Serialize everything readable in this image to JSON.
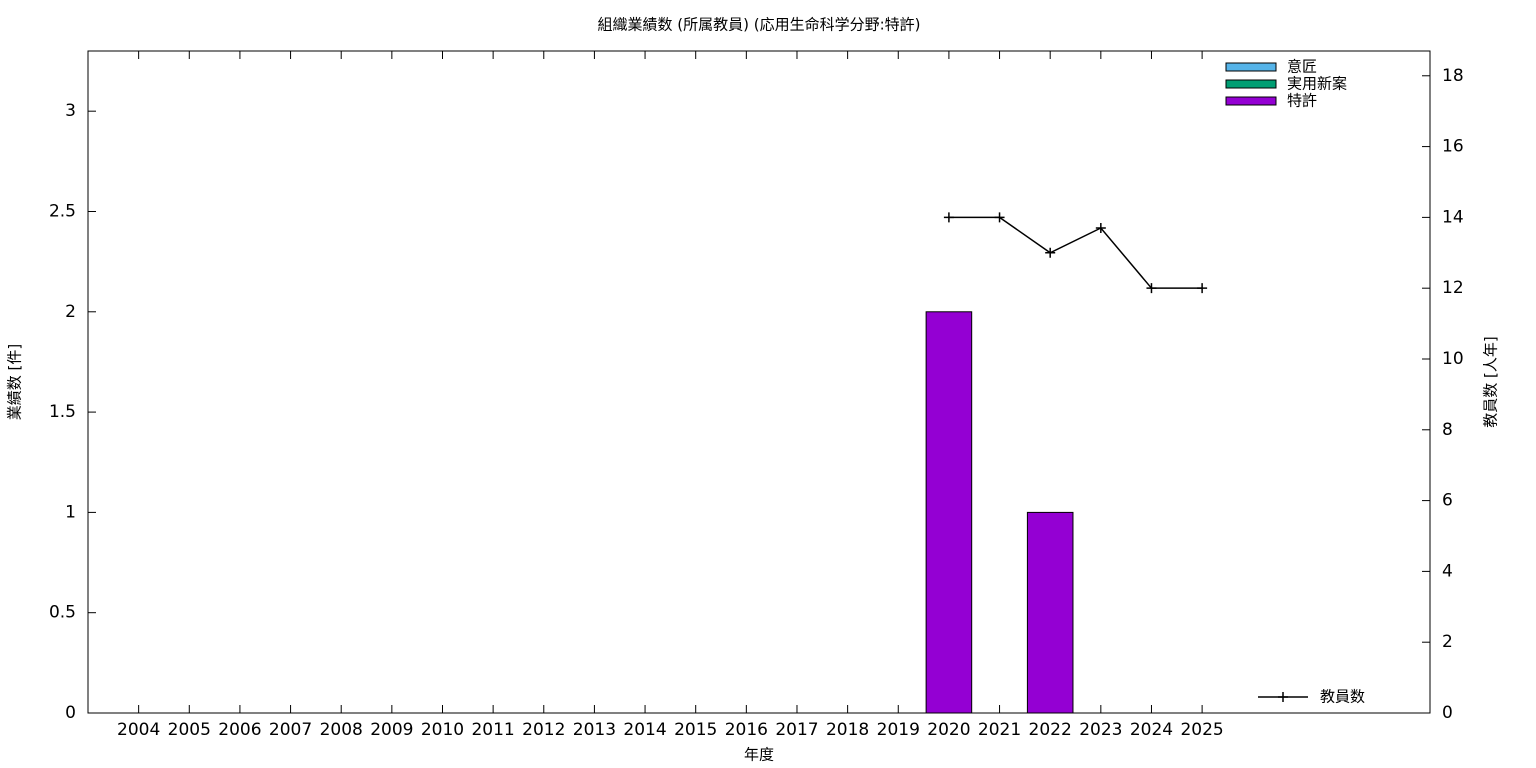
{
  "chart_data": {
    "type": "bar",
    "stacked": true,
    "title": "組織業績数 (所属教員) (応用生命科学分野:特許)",
    "x_label": "年度",
    "y_label": "業績数 [件]",
    "y2_label": "教員数 [人年]",
    "categories": [
      "2004",
      "2005",
      "2006",
      "2007",
      "2008",
      "2009",
      "2010",
      "2011",
      "2012",
      "2013",
      "2014",
      "2015",
      "2016",
      "2017",
      "2018",
      "2019",
      "2020",
      "2021",
      "2022",
      "2023",
      "2024",
      "2025"
    ],
    "series": [
      {
        "name": "意匠",
        "color": "#56b4e9",
        "values": [
          0,
          0,
          0,
          0,
          0,
          0,
          0,
          0,
          0,
          0,
          0,
          0,
          0,
          0,
          0,
          0,
          0,
          0,
          0,
          0,
          0,
          0
        ]
      },
      {
        "name": "実用新案",
        "color": "#009e73",
        "values": [
          0,
          0,
          0,
          0,
          0,
          0,
          0,
          0,
          0,
          0,
          0,
          0,
          0,
          0,
          0,
          0,
          0,
          0,
          0,
          0,
          0,
          0
        ]
      },
      {
        "name": "特許",
        "color": "#9400d3",
        "values": [
          0,
          0,
          0,
          0,
          0,
          0,
          0,
          0,
          0,
          0,
          0,
          0,
          0,
          0,
          0,
          0,
          2,
          0,
          1,
          0,
          0,
          0
        ]
      },
      {
        "name": "教員数",
        "type": "line",
        "axis": "y2",
        "color": "#000000",
        "values": [
          null,
          null,
          null,
          null,
          null,
          null,
          null,
          null,
          null,
          null,
          null,
          null,
          null,
          null,
          null,
          null,
          14,
          14,
          13,
          13.7,
          12,
          12
        ]
      }
    ],
    "ylim": [
      0,
      3.3
    ],
    "yticks": [
      0,
      0.5,
      1,
      1.5,
      2,
      2.5,
      3
    ],
    "y2lim": [
      0,
      18.7
    ],
    "y2ticks": [
      0,
      2,
      4,
      6,
      8,
      10,
      12,
      14,
      16,
      18
    ],
    "legend": "top-right",
    "grid": false
  }
}
